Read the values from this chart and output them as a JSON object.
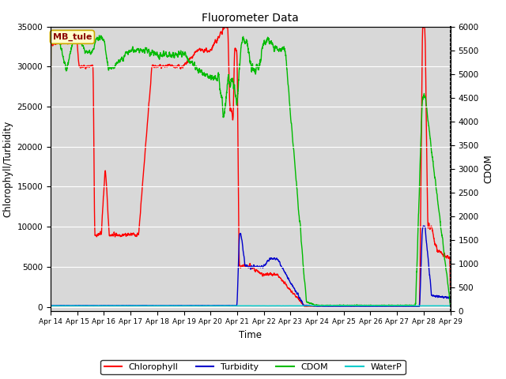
{
  "title": "Fluorometer Data",
  "xlabel": "Time",
  "ylabel_left": "Chlorophyll/Turbidity",
  "ylabel_right": "CDOM",
  "annotation": "MB_tule",
  "ylim_left": [
    -500,
    35000
  ],
  "ylim_right": [
    0,
    6000
  ],
  "background_color": "#ffffff",
  "plot_bg_color": "#d8d8d8",
  "grid_color": "#ffffff",
  "legend_colors": [
    "#ff0000",
    "#0000cc",
    "#00cc00",
    "#00cccc"
  ],
  "x_tick_labels": [
    "Apr 14",
    "Apr 15",
    "Apr 16",
    "Apr 17",
    "Apr 18",
    "Apr 19",
    "Apr 20",
    "Apr 21",
    "Apr 22",
    "Apr 23",
    "Apr 24",
    "Apr 25",
    "Apr 26",
    "Apr 27",
    "Apr 28",
    "Apr 29"
  ]
}
